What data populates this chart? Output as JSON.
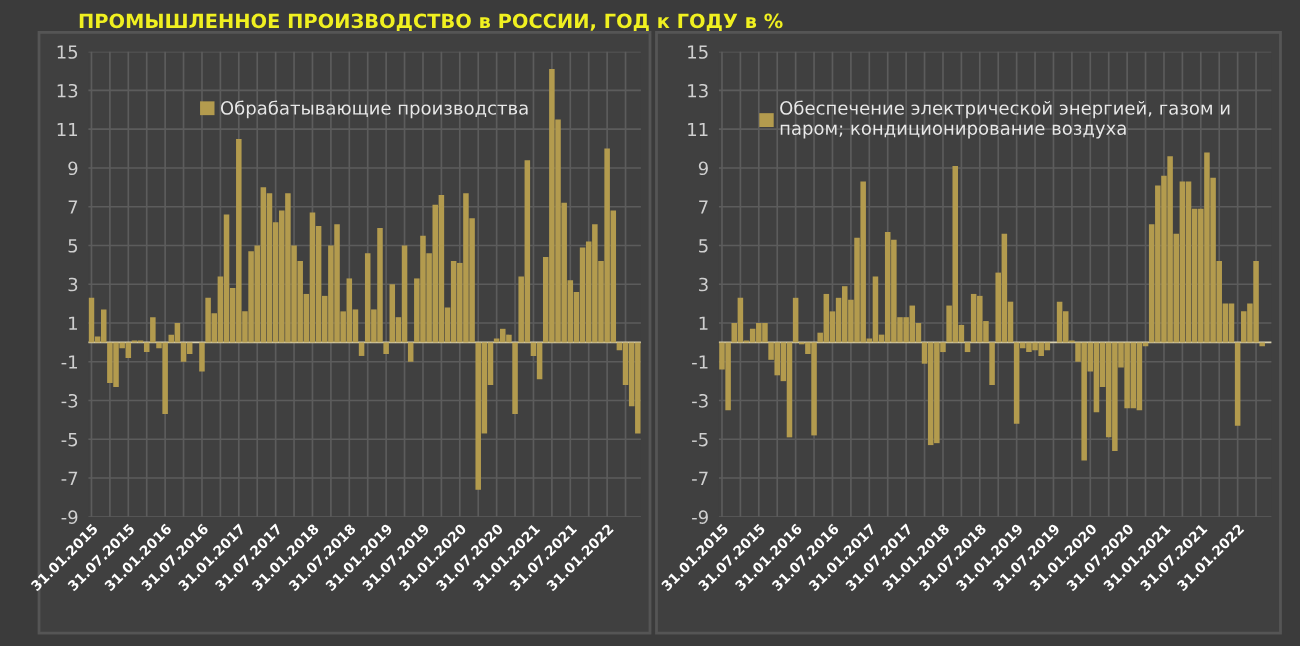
{
  "chart_data": [
    {
      "type": "bar",
      "title": "ПРОМЫШЛЕННОЕ ПРОИЗВОДСТВО в РОССИИ, ГОД к ГОДУ в %",
      "categories": [
        "31.01.2015",
        null,
        null,
        null,
        null,
        null,
        "31.07.2015",
        null,
        null,
        null,
        null,
        null,
        "31.01.2016",
        null,
        null,
        null,
        null,
        null,
        "31.07.2016",
        null,
        null,
        null,
        null,
        null,
        "31.01.2017",
        null,
        null,
        null,
        null,
        null,
        "31.07.2017",
        null,
        null,
        null,
        null,
        null,
        "31.01.2018",
        null,
        null,
        null,
        null,
        null,
        "31.07.2018",
        null,
        null,
        null,
        null,
        null,
        "31.01.2019",
        null,
        null,
        null,
        null,
        null,
        "31.07.2019",
        null,
        null,
        null,
        null,
        null,
        "31.01.2020",
        null,
        null,
        null,
        null,
        null,
        "31.07.2020",
        null,
        null,
        null,
        null,
        null,
        "31.01.2021",
        null,
        null,
        null,
        null,
        null,
        "31.07.2021",
        null,
        null,
        null,
        null,
        null,
        "31.01.2022",
        null,
        null,
        null,
        null,
        null
      ],
      "series": [
        {
          "name": "Обрабатывающие производства",
          "color": "#b39b4e",
          "values": [
            2.3,
            0.3,
            1.7,
            -2.1,
            -2.3,
            -0.3,
            -0.8,
            0.1,
            0.1,
            -0.5,
            1.3,
            -0.3,
            -3.7,
            0.4,
            1.0,
            -1.0,
            -0.6,
            0.0,
            -1.5,
            2.3,
            1.5,
            3.4,
            6.6,
            2.8,
            10.5,
            1.6,
            4.7,
            5.0,
            8.0,
            7.7,
            6.2,
            6.8,
            7.7,
            5.0,
            4.2,
            2.5,
            6.7,
            6.0,
            2.4,
            5.0,
            6.1,
            1.6,
            3.3,
            1.7,
            -0.7,
            4.6,
            1.7,
            5.9,
            -0.6,
            3.0,
            1.3,
            5.0,
            -1.0,
            3.3,
            5.5,
            4.6,
            7.1,
            7.6,
            1.8,
            4.2,
            4.1,
            7.7,
            6.4,
            -7.6,
            -4.7,
            -2.2,
            0.2,
            0.7,
            0.4,
            -3.7,
            3.4,
            9.4,
            -0.7,
            -1.9,
            4.4,
            14.1,
            11.5,
            7.2,
            3.2,
            2.6,
            4.9,
            5.2,
            6.1,
            4.2,
            10.0,
            6.8,
            -0.4,
            -2.2,
            -3.3,
            -4.7
          ]
        }
      ],
      "ylim": [
        -9,
        15
      ],
      "yticks": [
        -9,
        -7,
        -5,
        -3,
        -1,
        1,
        3,
        5,
        7,
        9,
        11,
        13,
        15
      ],
      "grid": true,
      "legend": "top"
    },
    {
      "type": "bar",
      "categories": [
        "31.01.2015",
        null,
        null,
        null,
        null,
        null,
        "31.07.2015",
        null,
        null,
        null,
        null,
        null,
        "31.01.2016",
        null,
        null,
        null,
        null,
        null,
        "31.07.2016",
        null,
        null,
        null,
        null,
        null,
        "31.01.2017",
        null,
        null,
        null,
        null,
        null,
        "31.07.2017",
        null,
        null,
        null,
        null,
        null,
        "31.01.2018",
        null,
        null,
        null,
        null,
        null,
        "31.07.2018",
        null,
        null,
        null,
        null,
        null,
        "31.01.2019",
        null,
        null,
        null,
        null,
        null,
        "31.07.2019",
        null,
        null,
        null,
        null,
        null,
        "31.01.2020",
        null,
        null,
        null,
        null,
        null,
        "31.07.2020",
        null,
        null,
        null,
        null,
        null,
        "31.01.2021",
        null,
        null,
        null,
        null,
        null,
        "31.07.2021",
        null,
        null,
        null,
        null,
        null,
        "31.01.2022",
        null,
        null,
        null,
        null,
        null
      ],
      "series": [
        {
          "name": "Обеспечение электрической энергией, газом и\nпаром; кондиционирование воздуха",
          "color": "#b39b4e",
          "values": [
            -1.4,
            -3.5,
            1.0,
            2.3,
            0.1,
            0.7,
            1.0,
            1.0,
            -0.9,
            -1.7,
            -2.0,
            -4.9,
            2.3,
            -0.1,
            -0.6,
            -4.8,
            0.5,
            2.5,
            1.6,
            2.3,
            2.9,
            2.2,
            5.4,
            8.3,
            0.2,
            3.4,
            0.4,
            5.7,
            5.3,
            1.3,
            1.3,
            1.9,
            1.0,
            -1.1,
            -5.3,
            -5.2,
            -0.5,
            1.9,
            9.1,
            0.9,
            -0.5,
            2.5,
            2.4,
            1.1,
            -2.2,
            3.6,
            5.6,
            2.1,
            -4.2,
            -0.3,
            -0.5,
            -0.4,
            -0.7,
            -0.4,
            0.0,
            2.1,
            1.6,
            0.1,
            -1.0,
            -6.1,
            -1.5,
            -3.6,
            -2.3,
            -4.9,
            -5.6,
            -1.3,
            -3.4,
            -3.4,
            -3.5,
            -0.2,
            6.1,
            8.1,
            8.6,
            9.6,
            5.6,
            8.3,
            8.3,
            6.9,
            6.9,
            9.8,
            8.5,
            4.2,
            2.0,
            2.0,
            -4.3,
            1.6,
            2.0,
            4.2,
            -0.2,
            null
          ]
        }
      ],
      "ylim": [
        -9,
        15
      ],
      "yticks": [
        -9,
        -7,
        -5,
        -3,
        -1,
        1,
        3,
        5,
        7,
        9,
        11,
        13,
        15
      ],
      "grid": true,
      "legend": "top"
    }
  ]
}
